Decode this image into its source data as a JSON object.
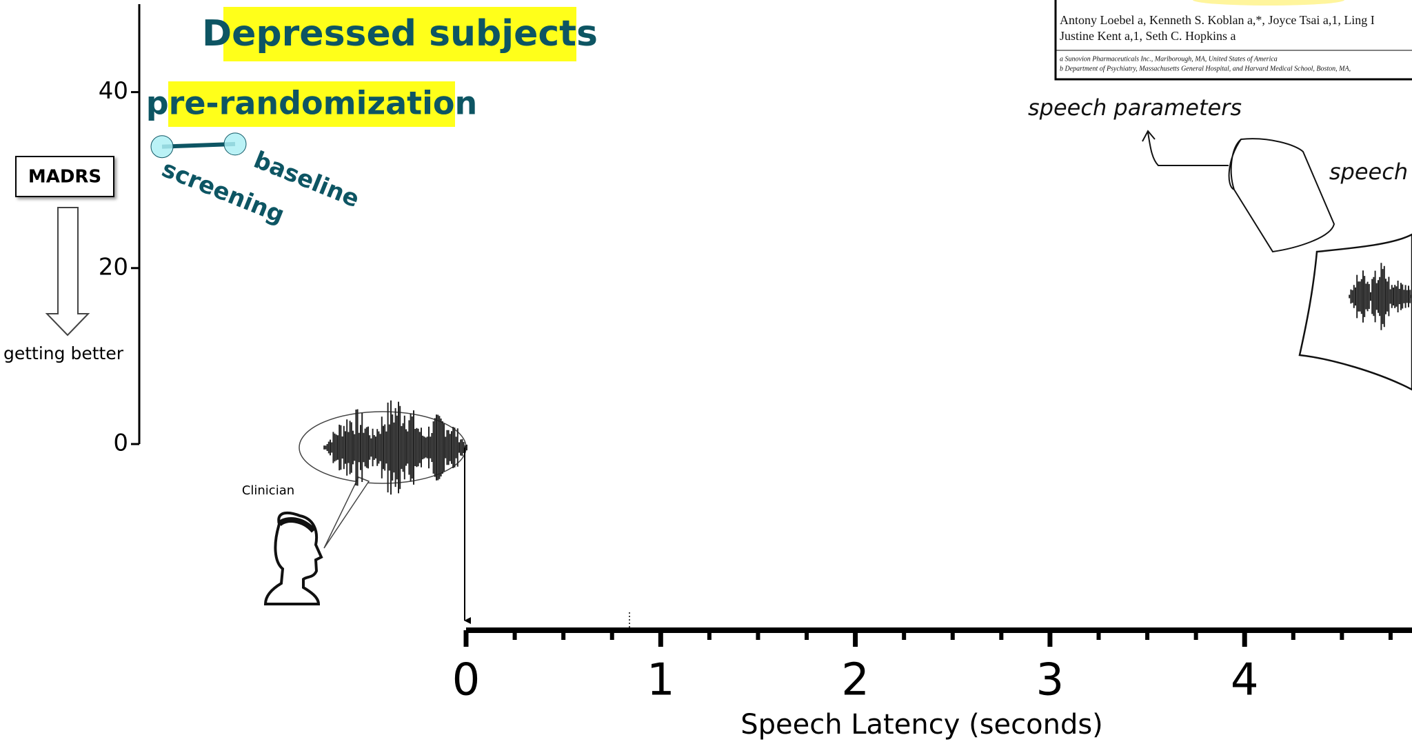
{
  "chart_data": {
    "type": "line",
    "title": "Depressed subjects",
    "subtitle": "pre-randomization",
    "y_label": "MADRS",
    "y_note": "getting better",
    "categories": [
      "screening",
      "baseline"
    ],
    "values": [
      33.8,
      34.1
    ],
    "color": "#0d5563",
    "marker_color": "#aef0f5",
    "ylim": [
      0,
      50
    ],
    "yticks": [
      0,
      20,
      40
    ],
    "xlabel": "Speech Latency (seconds)",
    "xlim": [
      0,
      4.86
    ],
    "xticks": [
      0,
      1,
      2,
      3,
      4
    ],
    "xminorticks": [
      0.25,
      0.5,
      0.75,
      1.25,
      1.5,
      1.75,
      2.25,
      2.5,
      2.75,
      3.25,
      3.5,
      3.75,
      4.25,
      4.5,
      4.75
    ]
  },
  "annotations": {
    "clinician": "Clinician",
    "speech_parameters": "speech parameters",
    "speech": "speech",
    "paper": [
      "Antony Loebel a, Kenneth S. Koblan a,*, Joyce Tsai a,1, Ling I",
      "Justine Kent a,1, Seth C. Hopkins a",
      "a Sunovion Pharmaceuticals Inc., Marlborough, MA, United States of America",
      "b Department of Psychiatry, Massachusetts General Hospital, and Harvard Medical School, Boston, MA,"
    ]
  }
}
